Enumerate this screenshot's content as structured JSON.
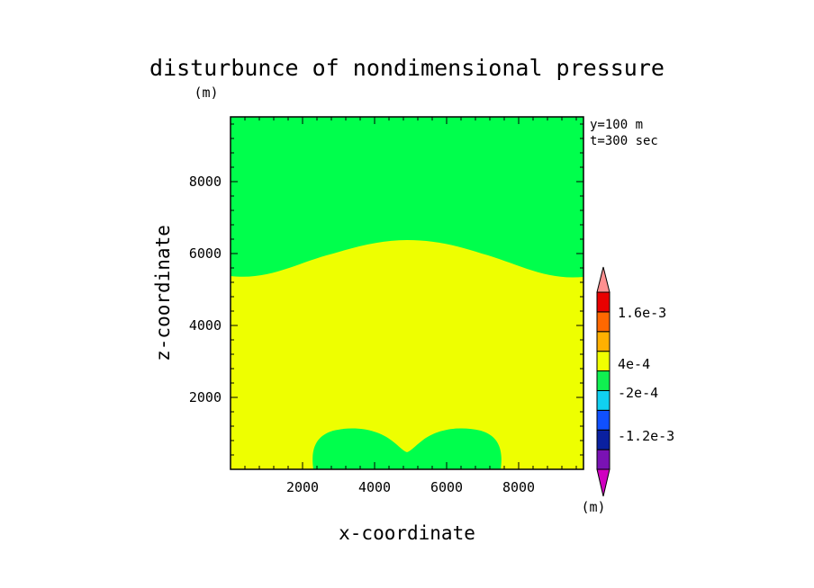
{
  "chart_data": {
    "type": "heatmap",
    "title": "disturbunce of nondimensional pressure",
    "unit_label": "(m)",
    "xlabel": "x-coordinate",
    "ylabel": "z-coordinate",
    "xlim": [
      0,
      9800
    ],
    "ylim": [
      0,
      9800
    ],
    "xticks": [
      2000,
      4000,
      6000,
      8000
    ],
    "yticks": [
      2000,
      4000,
      6000,
      8000
    ],
    "annotations": [
      "y=100 m",
      "t=300 sec"
    ],
    "colorbar": {
      "unit": "(m)",
      "labels": [
        "1.6e-3",
        "4e-4",
        "-2e-4",
        "-1.2e-3"
      ],
      "colors": [
        "#d000c0",
        "#7a12b4",
        "#0a20a0",
        "#1050ff",
        "#10d0f0",
        "#10f050",
        "#f0ff00",
        "#ffb000",
        "#ff6800",
        "#e80000",
        "#ff9090"
      ]
    },
    "regions": [
      {
        "name": "upper-green-region",
        "color": "#00ff4c",
        "level": "-2e-4 to 0"
      },
      {
        "name": "middle-yellow-region",
        "color": "#eeff00",
        "level": "0 to 4e-4"
      },
      {
        "name": "bottom-green-bubble",
        "color": "#00ff4c",
        "level": "-2e-4 to 0"
      }
    ]
  }
}
